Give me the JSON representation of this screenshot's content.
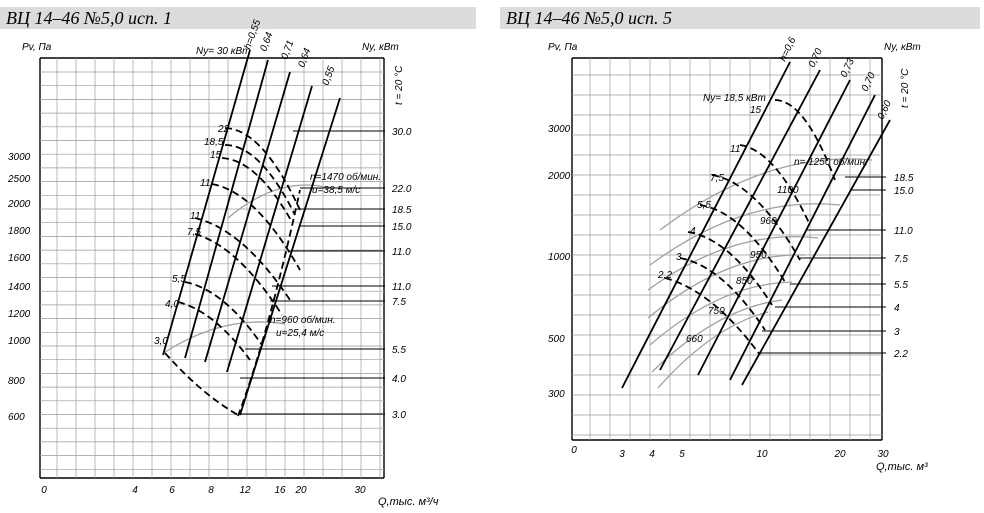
{
  "charts": [
    {
      "title": "ВЦ 14–46 №5,0 исп. 1",
      "y_axis_label": "Pv, Па",
      "right_axis_label": "Ny, кВт",
      "temp_label": "t = 20 °C",
      "x_axis_label": "Q,тыс. м³/ч",
      "y_ticks": [
        "3000",
        "2500",
        "2000",
        "1800",
        "1600",
        "1400",
        "1200",
        "1000",
        "800",
        "600"
      ],
      "x_ticks": [
        "0",
        "4",
        "6",
        "8",
        "12",
        "16",
        "20",
        "30"
      ],
      "efficiency_labels": [
        "h=0,55",
        "0,64",
        "0,71",
        "0,64",
        "0,55"
      ],
      "power_labels_curve": [
        "Ny= 30 кВт",
        "22",
        "18,5",
        "15",
        "11",
        "11",
        "7,5",
        "5,5",
        "4,0",
        "3,0"
      ],
      "right_power_labels": [
        "30.0",
        "22.0",
        "18.5",
        "15.0",
        "11.0",
        "11.0",
        "7.5",
        "5.5",
        "4.0",
        "3.0"
      ],
      "speed_annotations": [
        "n=1470 об/мин.",
        "u=38,5 м/с",
        "n=960 об/мин.",
        "u=25,4 м/с"
      ],
      "colors": {
        "grid": "#9a9a9a",
        "curve": "#000000",
        "speed_curve": "#a0a0a0",
        "title_bg": "#dcdcdc"
      }
    },
    {
      "title": "ВЦ 14–46 №5,0 исп. 5",
      "y_axis_label": "Pv, Па",
      "right_axis_label": "Ny, кВт",
      "temp_label": "t = 20 °C",
      "x_axis_label": "Q,тыс. м³",
      "y_ticks": [
        "3000",
        "2000",
        "1000",
        "500",
        "300"
      ],
      "x_ticks": [
        "0",
        "3",
        "4",
        "5",
        "10",
        "20",
        "30"
      ],
      "efficiency_labels": [
        "h=0,6",
        "0,70",
        "0,73",
        "0,70",
        "0,60"
      ],
      "power_labels_curve": [
        "Ny= 18,5 кВт",
        "15",
        "11",
        "7,5",
        "5,5",
        "4",
        "3",
        "2,2"
      ],
      "speed_labels": [
        "n= 1250 об/мин.",
        "1100",
        "960",
        "950",
        "850",
        "750",
        "660"
      ],
      "right_power_labels": [
        "18.5",
        "15.0",
        "11.0",
        "7.5",
        "5.5",
        "4",
        "3",
        "2.2"
      ],
      "colors": {
        "grid": "#9a9a9a",
        "curve": "#000000",
        "speed_curve": "#a0a0a0",
        "title_bg": "#dcdcdc"
      }
    }
  ]
}
